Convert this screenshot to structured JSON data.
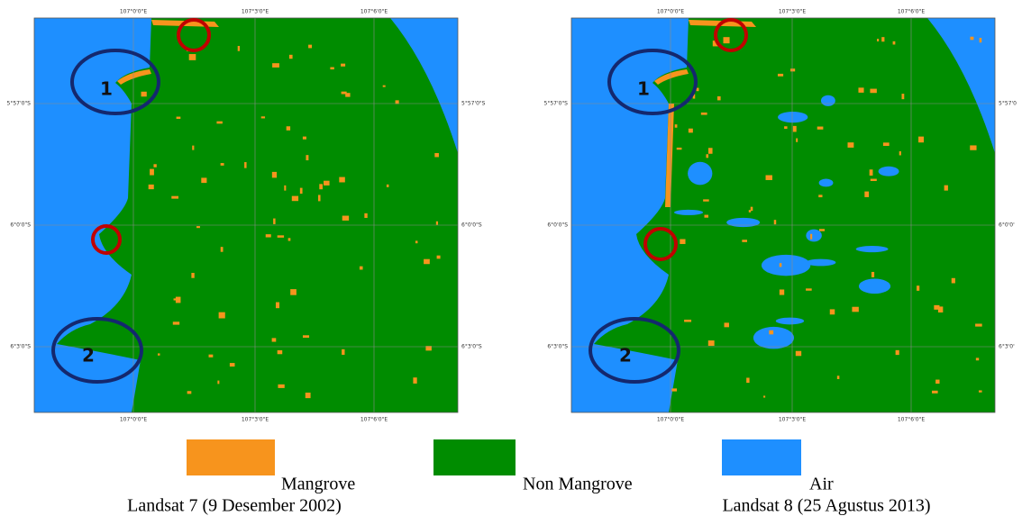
{
  "maps": [
    {
      "caption": "Landsat 7 (9 Desember 2002)",
      "top_labels": [
        "107°0'0\"E",
        "107°3'0\"E",
        "107°6'0\"E"
      ],
      "bottom_labels": [
        "107°0'0\"E",
        "107°3'0\"E",
        "107°6'0\"E"
      ],
      "left_labels": [
        "5°57'0\"S",
        "6°0'0\"S",
        "6°3'0\"S"
      ],
      "right_labels": [
        "5°57'0\"S",
        "6°0'0\"S",
        "6°3'0\"S"
      ],
      "markers": [
        "1",
        "2"
      ]
    },
    {
      "caption": "Landsat 8 (25 Agustus 2013)",
      "top_labels": [
        "107°0'0\"E",
        "107°3'0\"E",
        "107°6'0\"E"
      ],
      "bottom_labels": [
        "107°0'0\"E",
        "107°3'0\"E",
        "107°6'0\"E"
      ],
      "left_labels": [
        "5°57'0\"S",
        "6°0'0\"S",
        "6°3'0\"S"
      ],
      "right_labels": [
        "5°57'0",
        "6°0'0'",
        "6°3'0'"
      ],
      "markers": [
        "1",
        "2"
      ]
    }
  ],
  "legend": [
    {
      "label": "Mangrove",
      "color": "#f7941d"
    },
    {
      "label": "Non Mangrove",
      "color": "#008c00"
    },
    {
      "label": "Air",
      "color": "#1e8fff"
    }
  ]
}
